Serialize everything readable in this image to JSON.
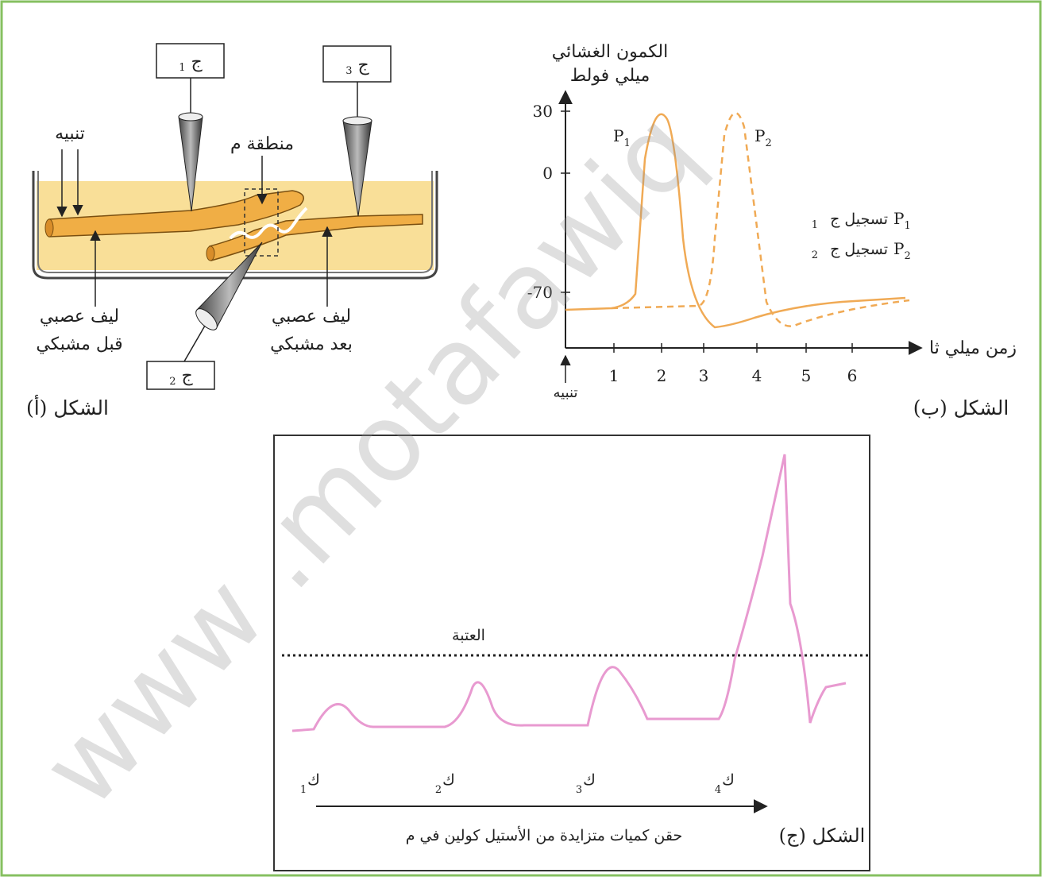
{
  "figure_a": {
    "caption": "الشكل (أ)",
    "electrodes": [
      {
        "letter": "ج",
        "sub": "1"
      },
      {
        "letter": "ج",
        "sub": "2"
      },
      {
        "letter": "ج",
        "sub": "3"
      }
    ],
    "stimulus": "تنبيه",
    "region": "منطقة م",
    "presynaptic": [
      "ليف عصبي",
      "قبل مشبكي"
    ],
    "postsynaptic": [
      "ليف عصبي",
      "بعد مشبكي"
    ]
  },
  "figure_b": {
    "caption": "الشكل (ب)",
    "y_label": [
      "الكمون الغشائي",
      "ميلي فولط"
    ],
    "x_label": "زمن ميلي ثا",
    "stimulus": "تنبيه",
    "yticks": [
      30,
      0,
      -70
    ],
    "xticks": [
      1,
      2,
      3,
      4,
      5,
      6
    ],
    "peaks": [
      {
        "symbol": "P",
        "sub": "1"
      },
      {
        "symbol": "P",
        "sub": "2"
      }
    ],
    "legend": [
      {
        "symbol": "P",
        "sub": "1",
        "text": "تسجيل ج",
        "electrode": "1"
      },
      {
        "symbol": "P",
        "sub": "2",
        "text": "تسجيل ج",
        "electrode": "2"
      }
    ]
  },
  "figure_c": {
    "caption": "الشكل (ج)",
    "threshold": "العتبة",
    "injections": [
      {
        "letter": "ك",
        "sub": "1"
      },
      {
        "letter": "ك",
        "sub": "2"
      },
      {
        "letter": "ك",
        "sub": "3"
      },
      {
        "letter": "ك",
        "sub": "4"
      }
    ],
    "x_label": "حقن كميات متزايدة من الأستيل كولين في م"
  },
  "watermark": "www .motafawiq"
}
